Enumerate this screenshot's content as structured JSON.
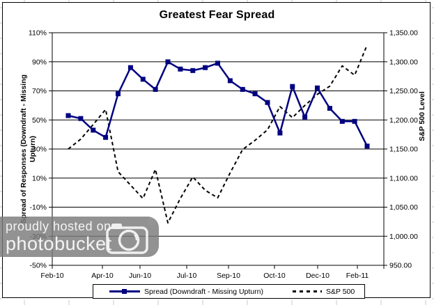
{
  "title": "Greatest Fear Spread",
  "left_axis": {
    "title_line1": "Spread of Responses (Downdraft - Missing",
    "title_line2": "Upturn)",
    "tick_labels": [
      "110%",
      "90%",
      "70%",
      "50%",
      "30%",
      "10%",
      "-10%",
      "-30%",
      "-50%"
    ]
  },
  "right_axis": {
    "title": "S&P 500 Level",
    "tick_labels": [
      "1,350.00",
      "1,300.00",
      "1,250.00",
      "1,200.00",
      "1,150.00",
      "1,100.00",
      "1,050.00",
      "1,000.00",
      "950.00"
    ]
  },
  "x_axis": {
    "labels": [
      "Feb-10",
      "Apr-10",
      "Jun-10",
      "Jul-10",
      "Sep-10",
      "Oct-10",
      "Dec-10",
      "Feb-11"
    ]
  },
  "legend": {
    "spread_label": "Spread (Downdraft - Missing Upturn)",
    "sp500_label": "S&P 500"
  },
  "watermark": {
    "line1": "proudly hosted on",
    "line2": "photobucket",
    "registered": "®",
    "icon": "camera-icon"
  },
  "colors": {
    "spread_line": "#000080",
    "sp500_line": "#000000",
    "grid": "#000000",
    "frame": "#000000",
    "margin_grid": "#c9c9c9",
    "watermark_bg": "#7a7a7a",
    "watermark_text": "#f4f4f4"
  },
  "chart_data": {
    "type": "line",
    "title": "Greatest Fear Spread",
    "grid": true,
    "legend_position": "bottom",
    "left_ylim": [
      -50,
      110
    ],
    "left_ytick_step": 20,
    "right_ylim": [
      950,
      1350
    ],
    "right_ytick_step": 50,
    "x_tick_labels": [
      "Feb-10",
      "Apr-10",
      "Jun-10",
      "Jul-10",
      "Sep-10",
      "Oct-10",
      "Dec-10",
      "Feb-11"
    ],
    "series": [
      {
        "name": "Spread (Downdraft - Missing Upturn)",
        "axis": "left",
        "style": "solid",
        "marker": "square",
        "color": "#000080",
        "values_percent": [
          53,
          51,
          43,
          38,
          68,
          86,
          78,
          71,
          90,
          85,
          84,
          86,
          89,
          77,
          71,
          68,
          62,
          41,
          73,
          52,
          72,
          58,
          49,
          49,
          32
        ]
      },
      {
        "name": "S&P 500",
        "axis": "right",
        "style": "dashed",
        "marker": "none",
        "color": "#000000",
        "values": [
          1150,
          1167,
          1192,
          1218,
          1111,
          1088,
          1065,
          1115,
          1023,
          1065,
          1102,
          1079,
          1066,
          1109,
          1149,
          1165,
          1183,
          1223,
          1204,
          1225,
          1244,
          1258,
          1293,
          1277,
          1329
        ]
      }
    ]
  }
}
